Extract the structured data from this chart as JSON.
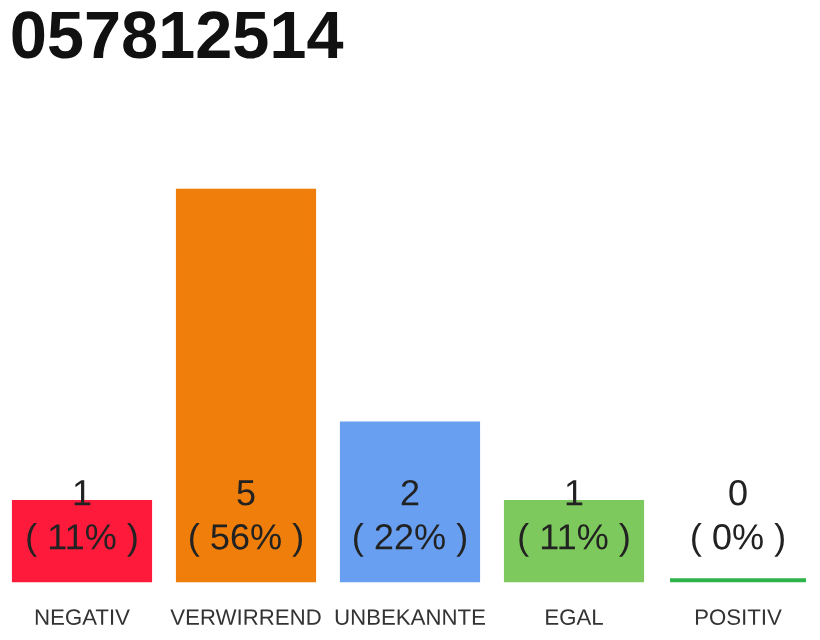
{
  "chart_data": {
    "type": "bar",
    "title": "057812514",
    "categories": [
      "NEGATIV",
      "VERWIRREND",
      "UNBEKANNTE",
      "EGAL",
      "POSITIV"
    ],
    "values": [
      1,
      5,
      2,
      1,
      0
    ],
    "colors": [
      "#fe1a3b",
      "#f07e0b",
      "#689ff0",
      "#7ec95d",
      "#2db34a"
    ],
    "value_labels": [
      "1\n( 11% )",
      "5\n( 56% )",
      "2\n( 22% )",
      "1\n( 11% )",
      "0\n( 0% )"
    ]
  }
}
